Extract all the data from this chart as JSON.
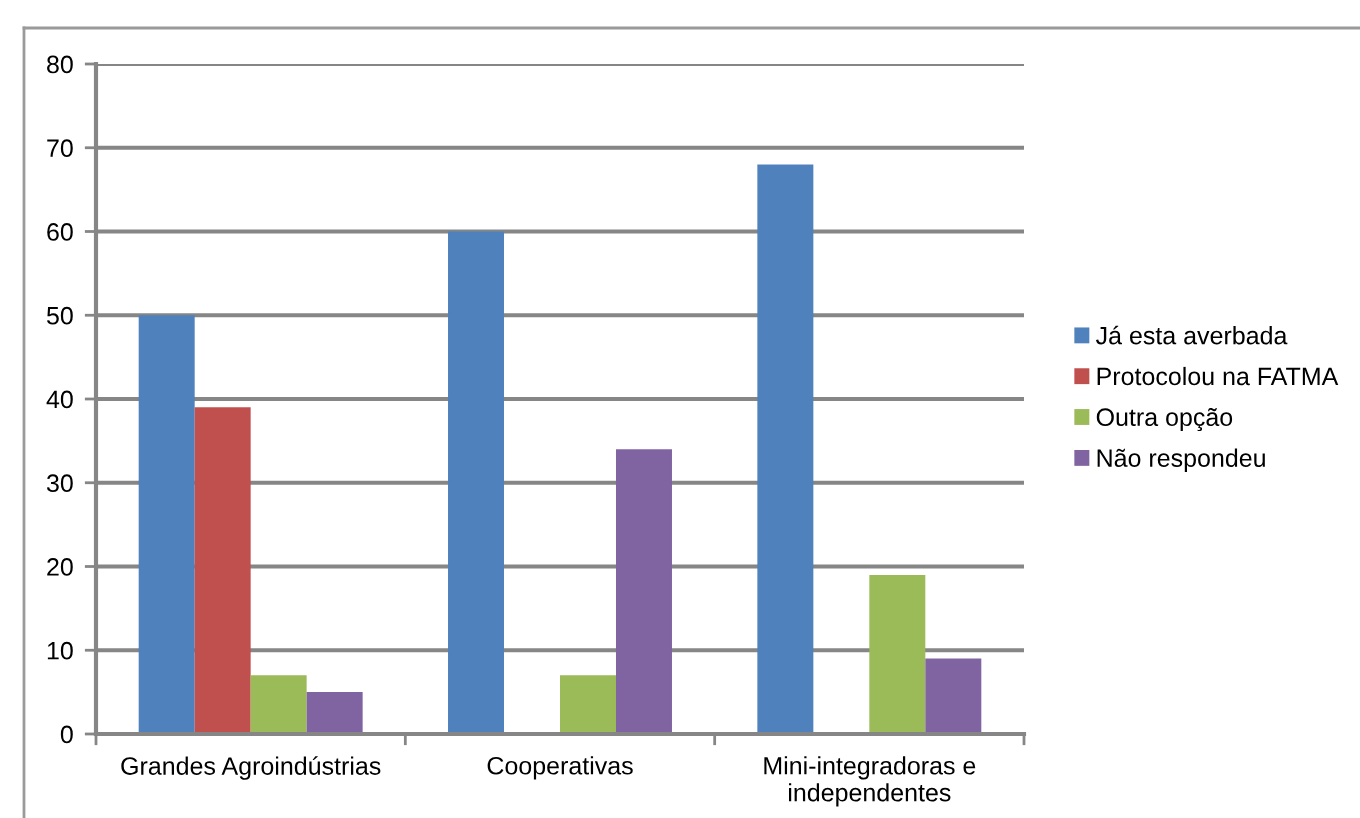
{
  "chart_data": {
    "type": "bar",
    "categories": [
      "Grandes Agroindústrias",
      "Cooperativas",
      "Mini-integradoras e\nindependentes"
    ],
    "series": [
      {
        "name": "Já esta averbada",
        "color": "#4f81bd",
        "values": [
          50,
          60,
          68
        ]
      },
      {
        "name": "Protocolou na FATMA",
        "color": "#c0504d",
        "values": [
          39,
          0,
          0
        ]
      },
      {
        "name": "Outra opção",
        "color": "#9bbb59",
        "values": [
          7,
          7,
          19
        ]
      },
      {
        "name": "Não respondeu",
        "color": "#8064a2",
        "values": [
          5,
          34,
          9
        ]
      }
    ],
    "ylim": [
      0,
      80
    ],
    "yticks": [
      0,
      10,
      20,
      30,
      40,
      50,
      60,
      70,
      80
    ],
    "grid": "y",
    "legend": "right"
  }
}
